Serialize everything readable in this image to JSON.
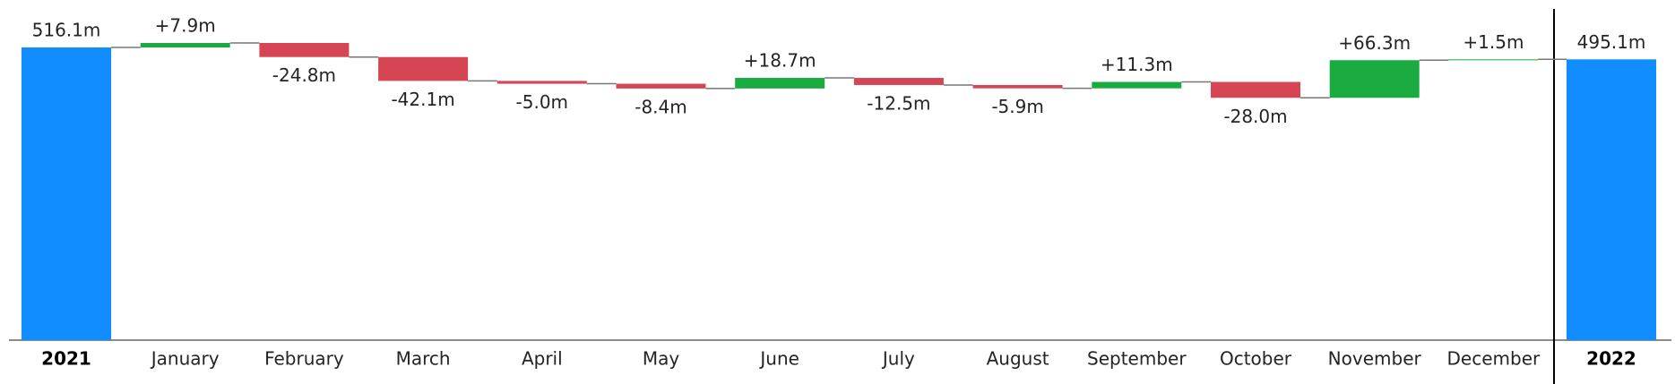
{
  "chart_data": {
    "type": "waterfall",
    "categories": [
      "2021",
      "January",
      "February",
      "March",
      "April",
      "May",
      "June",
      "July",
      "August",
      "September",
      "October",
      "November",
      "December",
      "2022"
    ],
    "values": [
      516.1,
      7.9,
      -24.8,
      -42.1,
      -5.0,
      -8.4,
      18.7,
      -12.5,
      -5.9,
      11.3,
      -28.0,
      66.3,
      1.5,
      495.1
    ],
    "value_labels": [
      "516.1m",
      "+7.9m",
      "-24.8m",
      "-42.1m",
      "-5.0m",
      "-8.4m",
      "+18.7m",
      "-12.5m",
      "-5.9m",
      "+11.3m",
      "-28.0m",
      "+66.3m",
      "+1.5m",
      "495.1m"
    ],
    "measure": [
      "total",
      "relative",
      "relative",
      "relative",
      "relative",
      "relative",
      "relative",
      "relative",
      "relative",
      "relative",
      "relative",
      "relative",
      "relative",
      "total"
    ],
    "colors": {
      "total": "#118dff",
      "increase": "#1aab40",
      "decrease": "#d64554"
    }
  }
}
